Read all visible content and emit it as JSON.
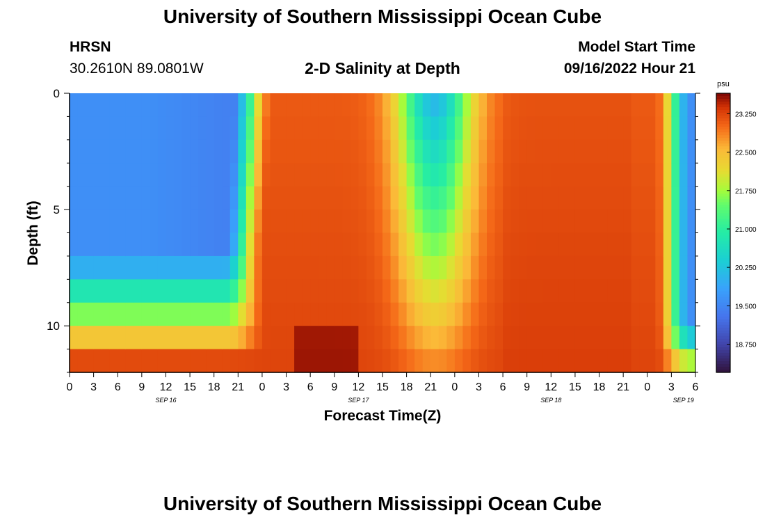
{
  "header": {
    "title": "University of Southern Mississippi Ocean Cube",
    "station": "HRSN",
    "coordinates": "30.2610N  89.0801W",
    "plot_title": "2-D Salinity at Depth",
    "model_label": "Model Start Time",
    "model_time": "09/16/2022 Hour 21"
  },
  "footer": {
    "title": "University of Southern Mississippi Ocean Cube"
  },
  "chart_data": {
    "type": "heatmap",
    "title": "2-D Salinity at Depth",
    "xlabel": "Forecast Time(Z)",
    "ylabel": "Depth (ft)",
    "x_tick_labels": [
      "0",
      "3",
      "6",
      "9",
      "12",
      "15",
      "18",
      "21",
      "0",
      "3",
      "6",
      "9",
      "12",
      "15",
      "18",
      "21",
      "0",
      "3",
      "6",
      "9",
      "12",
      "15",
      "18",
      "21",
      "0",
      "3",
      "6"
    ],
    "date_labels": [
      {
        "label": "SEP 16",
        "tick_index": 4
      },
      {
        "label": "SEP 17",
        "tick_index": 12
      },
      {
        "label": "SEP 18",
        "tick_index": 20
      },
      {
        "label": "SEP 19",
        "tick_index": 25.5
      }
    ],
    "x_range_hours": [
      0,
      78
    ],
    "y_tick_labels": [
      "0",
      "5",
      "10"
    ],
    "y_ticks": [
      0,
      5,
      10
    ],
    "y_range_ft": [
      0,
      12
    ],
    "colorbar": {
      "unit": "psu",
      "tick_labels": [
        "23.250",
        "22.500",
        "21.750",
        "21.000",
        "20.250",
        "19.500",
        "18.750"
      ],
      "range": [
        18.2,
        23.65
      ]
    },
    "salinity_description": "Low salinity (~19.3-20.5 psu) near surface Sep 16 hours 0-20 and again Sep 19 hours 4-6; high salinity (~23 psu) from Sep 17 through Sep 18; lower depths saltier."
  }
}
